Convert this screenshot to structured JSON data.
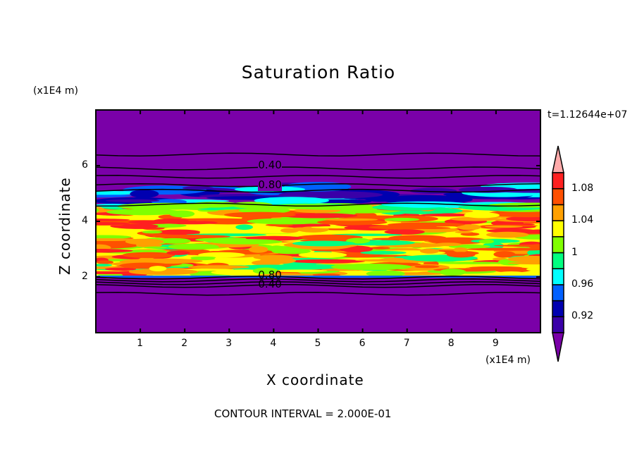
{
  "chart_data": {
    "type": "heatmap",
    "subtype": "filled contour",
    "title": "Saturation Ratio",
    "xlabel": "X coordinate",
    "ylabel": "Z coordinate",
    "x_unit": "(x1E4 m)",
    "y_unit": "(x1E4 m)",
    "xlim": [
      0,
      10
    ],
    "ylim": [
      0,
      8
    ],
    "xticks": [
      "1",
      "2",
      "3",
      "4",
      "5",
      "6",
      "7",
      "8",
      "9"
    ],
    "yticks": [
      "2",
      "4",
      "6"
    ],
    "time_label": "t=1.12644e+07",
    "footer": "CONTOUR INTERVAL = 2.000E-01",
    "contour_labels": [
      "0.40",
      "0.80",
      "0.80",
      "0.40"
    ],
    "colorbar": {
      "levels": [
        0.9,
        0.92,
        0.94,
        0.96,
        0.98,
        1,
        1.02,
        1.04,
        1.06,
        1.08,
        1.1
      ],
      "tick_labels": [
        "0.92",
        "0.96",
        "1",
        "1.04",
        "1.08"
      ],
      "colors": [
        "#7a00a8",
        "#3a00a8",
        "#0000b0",
        "#0060ff",
        "#00ffff",
        "#00ff80",
        "#80ff00",
        "#ffff00",
        "#ffa000",
        "#ff5000",
        "#ff2020",
        "#ffaaaa"
      ]
    }
  }
}
